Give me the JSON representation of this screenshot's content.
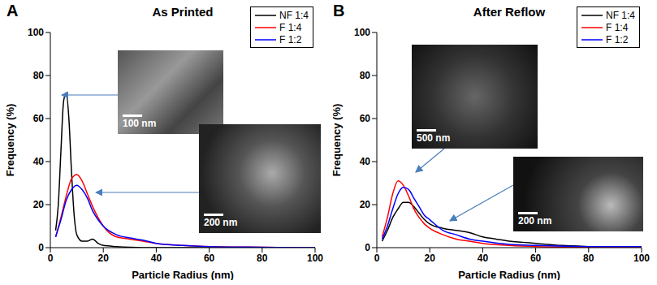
{
  "chart_data": [
    {
      "type": "line",
      "panel": "A",
      "title": "As Printed",
      "x_label": "Particle Radius (nm)",
      "y_label": "Frequency (%)",
      "xlim": [
        0,
        100
      ],
      "ylim": [
        0,
        100
      ],
      "xticks": [
        0,
        20,
        40,
        60,
        80,
        100
      ],
      "yticks": [
        0,
        20,
        40,
        60,
        80,
        100
      ],
      "legend": "upper right",
      "annotations": [
        "100 nm",
        "200 nm"
      ],
      "series": [
        {
          "name": "NF 1:4",
          "color": "#000000",
          "x": [
            2,
            3,
            4,
            5,
            6,
            7,
            8,
            9,
            10,
            12,
            14,
            16,
            18,
            20,
            25,
            30,
            40,
            100
          ],
          "values": [
            8,
            20,
            45,
            68,
            72,
            60,
            35,
            15,
            6,
            3,
            3,
            4,
            2,
            1,
            0.5,
            0.2,
            0,
            0
          ]
        },
        {
          "name": "F 1:4",
          "color": "#ff0000",
          "x": [
            2,
            4,
            6,
            8,
            10,
            12,
            14,
            16,
            18,
            20,
            25,
            30,
            35,
            40,
            50,
            60,
            80,
            100
          ],
          "values": [
            5,
            14,
            24,
            32,
            34,
            31,
            25,
            19,
            14,
            10,
            5,
            4,
            3,
            2,
            1,
            0.5,
            0.2,
            0
          ]
        },
        {
          "name": "F 1:2",
          "color": "#0000ff",
          "x": [
            2,
            4,
            6,
            8,
            10,
            12,
            14,
            16,
            18,
            20,
            25,
            30,
            35,
            40,
            50,
            60,
            80,
            100
          ],
          "values": [
            5,
            13,
            22,
            27,
            29,
            27,
            23,
            17,
            13,
            10,
            6,
            4.5,
            3.5,
            2,
            1,
            0.5,
            0.2,
            0
          ]
        }
      ]
    },
    {
      "type": "line",
      "panel": "B",
      "title": "After Reflow",
      "x_label": "Particle Radius (nm)",
      "y_label": "Frequency (%)",
      "xlim": [
        0,
        100
      ],
      "ylim": [
        0,
        100
      ],
      "xticks": [
        0,
        20,
        40,
        60,
        80,
        100
      ],
      "yticks": [
        0,
        20,
        40,
        60,
        80,
        100
      ],
      "legend": "upper right",
      "annotations": [
        "500 nm",
        "200 nm"
      ],
      "series": [
        {
          "name": "NF 1:4",
          "color": "#000000",
          "x": [
            2,
            4,
            6,
            8,
            10,
            12,
            14,
            16,
            18,
            20,
            25,
            30,
            35,
            40,
            45,
            50,
            55,
            60,
            70,
            80,
            100
          ],
          "values": [
            3,
            8,
            14,
            18,
            21,
            21,
            19,
            16,
            13,
            11,
            9,
            8,
            7,
            5,
            4,
            3,
            2.5,
            2,
            1,
            0.5,
            0
          ]
        },
        {
          "name": "F 1:4",
          "color": "#ff0000",
          "x": [
            2,
            4,
            6,
            8,
            10,
            12,
            14,
            16,
            18,
            20,
            25,
            30,
            35,
            40,
            50,
            60,
            80,
            100
          ],
          "values": [
            5,
            14,
            25,
            31,
            29,
            24,
            18,
            14,
            11,
            9,
            6,
            4,
            3,
            2,
            1,
            0.5,
            0.2,
            0
          ]
        },
        {
          "name": "F 1:2",
          "color": "#0000ff",
          "x": [
            2,
            4,
            6,
            8,
            10,
            12,
            14,
            16,
            18,
            20,
            25,
            30,
            35,
            40,
            50,
            60,
            80,
            100
          ],
          "values": [
            4,
            10,
            18,
            25,
            28,
            27,
            23,
            19,
            15,
            13,
            8,
            6,
            4,
            3,
            1.5,
            1,
            0.5,
            0.5
          ]
        }
      ]
    }
  ]
}
